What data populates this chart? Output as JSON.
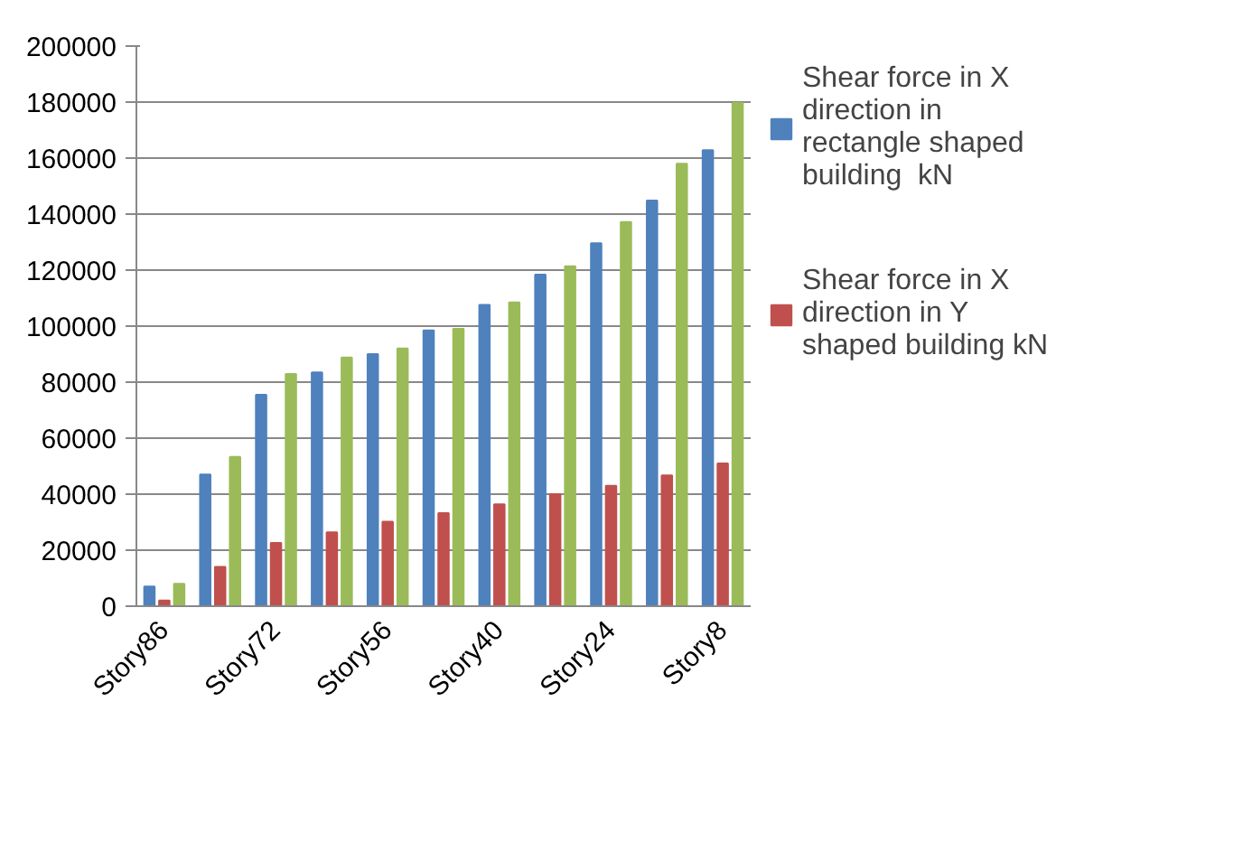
{
  "chart_data": {
    "type": "bar",
    "categories": [
      "Story86",
      null,
      "Story72",
      null,
      "Story56",
      null,
      "Story40",
      null,
      "Story24",
      null,
      "Story8"
    ],
    "series": [
      {
        "name": "Shear force in X direction in rectangle shaped building  kN",
        "color": "#4f81bd",
        "values": [
          7000,
          47000,
          75500,
          83500,
          90000,
          98500,
          107600,
          118400,
          129600,
          144800,
          162800
        ]
      },
      {
        "name": "Shear force in X direction in Y shaped building kN",
        "color": "#c0504d",
        "values": [
          2000,
          14000,
          22600,
          26400,
          30200,
          33200,
          36400,
          40000,
          43000,
          46700,
          51000
        ]
      },
      {
        "color": "#9bbb59",
        "values": [
          8000,
          53300,
          82900,
          88800,
          92000,
          99000,
          108500,
          121400,
          137200,
          158000,
          179700
        ]
      }
    ],
    "ylim": [
      0,
      200000
    ],
    "yticks": [
      0,
      20000,
      40000,
      60000,
      80000,
      100000,
      120000,
      140000,
      160000,
      180000,
      200000
    ],
    "grid": "y",
    "legend": "right"
  }
}
